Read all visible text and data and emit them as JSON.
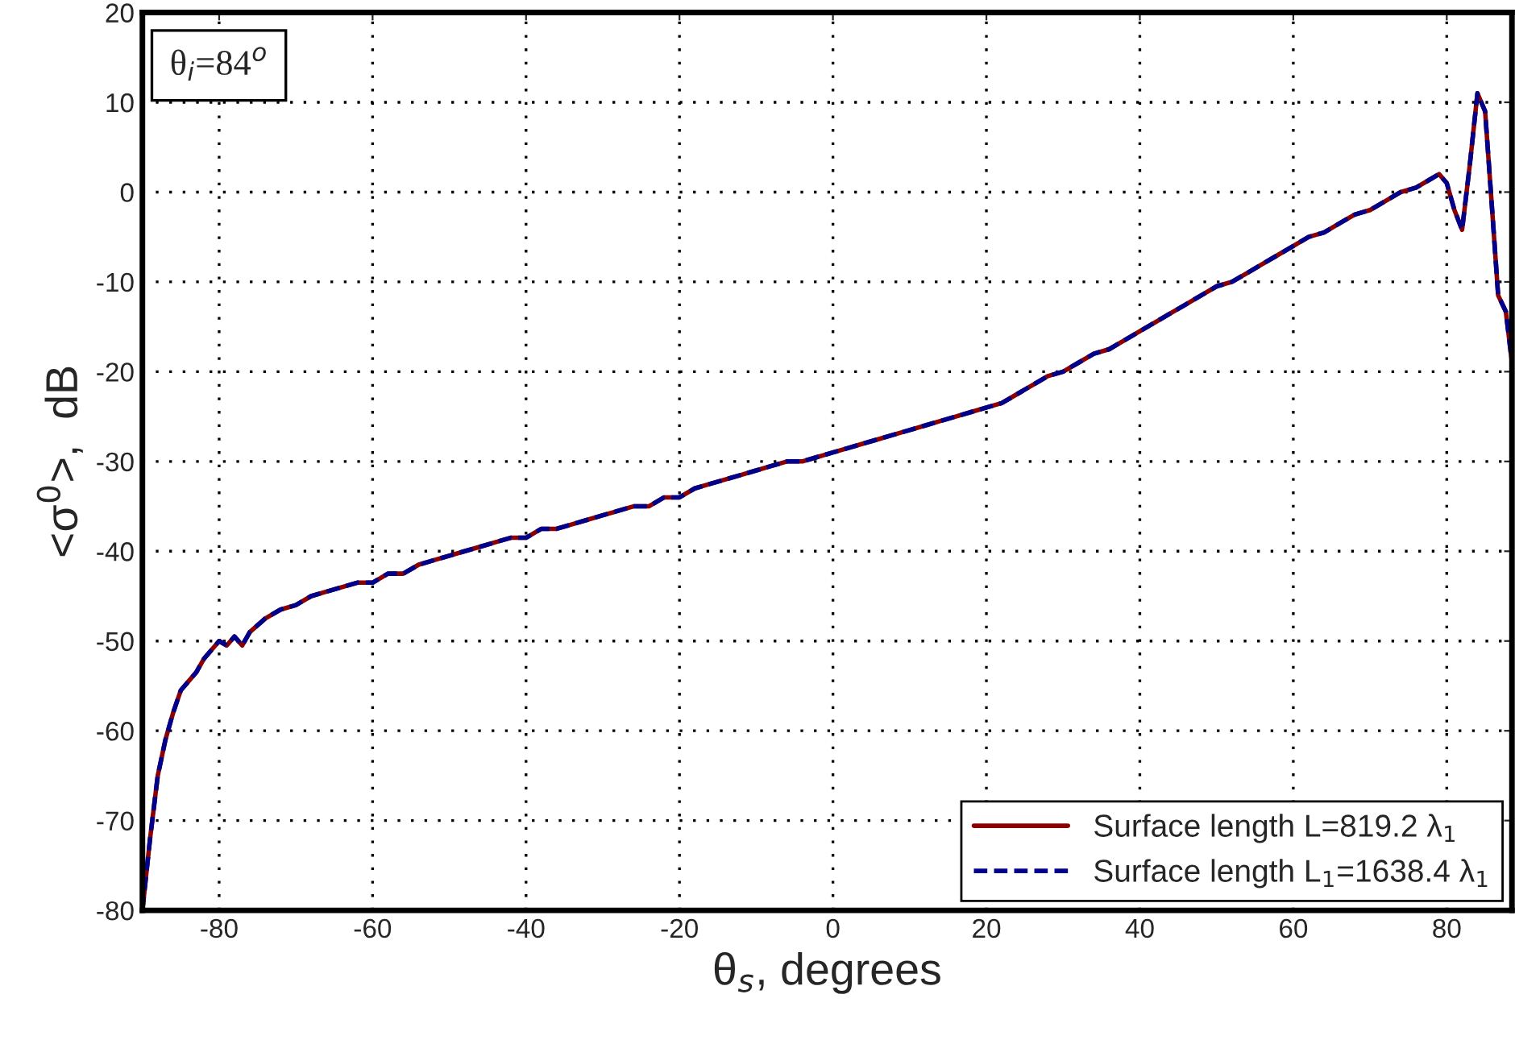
{
  "chart_data": {
    "type": "line",
    "xlabel": "θ$_{s}$, degrees",
    "ylabel": "<σ$^{0}$>,  dB",
    "annotations": [
      "θ$_{i}$=84$^{o}$"
    ],
    "x": [
      -90,
      -89,
      -88,
      -87,
      -86,
      -85,
      -84,
      -83,
      -82,
      -80,
      -79,
      -78,
      -77,
      -76,
      -74,
      -72,
      -70,
      -68,
      -66,
      -64,
      -62,
      -60,
      -58,
      -56,
      -54,
      -52,
      -50,
      -48,
      -46,
      -44,
      -42,
      -40,
      -38,
      -36,
      -34,
      -32,
      -30,
      -28,
      -26,
      -24,
      -22,
      -20,
      -18,
      -16,
      -14,
      -12,
      -10,
      -8,
      -6,
      -4,
      -2,
      0,
      2,
      4,
      6,
      8,
      10,
      12,
      14,
      16,
      18,
      20,
      22,
      24,
      26,
      28,
      30,
      32,
      34,
      36,
      38,
      40,
      42,
      44,
      46,
      48,
      50,
      52,
      54,
      56,
      58,
      60,
      62,
      64,
      66,
      68,
      70,
      72,
      74,
      76,
      78,
      79,
      80,
      81,
      82,
      83,
      84,
      85,
      86,
      86.7,
      87.7,
      88.5
    ],
    "series": [
      {
        "name": "Surface length L=819.2 λ$_{1}$",
        "color": "#8b0000",
        "line_style": "solid",
        "values": [
          -80,
          -72,
          -65,
          -61,
          -58,
          -55.5,
          -54.5,
          -53.5,
          -52,
          -50,
          -50.5,
          -49.5,
          -50.5,
          -49,
          -47.5,
          -46.5,
          -46,
          -45,
          -44.5,
          -44,
          -43.5,
          -43.5,
          -42.5,
          -42.5,
          -41.5,
          -41,
          -40.5,
          -40,
          -39.5,
          -39,
          -38.5,
          -38.5,
          -37.5,
          -37.5,
          -37,
          -36.5,
          -36,
          -35.5,
          -35,
          -35,
          -34,
          -34,
          -33,
          -32.5,
          -32,
          -31.5,
          -31,
          -30.5,
          -30,
          -30,
          -29.5,
          -29,
          -28.5,
          -28,
          -27.5,
          -27,
          -26.5,
          -26,
          -25.5,
          -25,
          -24.5,
          -24,
          -23.5,
          -22.5,
          -21.5,
          -20.5,
          -20,
          -19,
          -18,
          -17.5,
          -16.5,
          -15.5,
          -14.5,
          -13.5,
          -12.5,
          -11.5,
          -10.5,
          -10,
          -9,
          -8,
          -7,
          -6,
          -5,
          -4.5,
          -3.5,
          -2.5,
          -2,
          -1,
          0,
          0.5,
          1.5,
          2,
          1,
          -2,
          -4.2,
          3,
          11,
          9,
          -3,
          -11.5,
          -13.3,
          -19
        ]
      },
      {
        "name": "Surface length L$_{1}$=1638.4 λ$_{1}$",
        "color": "#00008b",
        "line_style": "dashed",
        "values": [
          -80,
          -72,
          -65,
          -61,
          -58,
          -55.5,
          -54.5,
          -53.5,
          -52,
          -50,
          -50.5,
          -49.5,
          -50.5,
          -49,
          -47.5,
          -46.5,
          -46,
          -45,
          -44.5,
          -44,
          -43.5,
          -43.5,
          -42.5,
          -42.5,
          -41.5,
          -41,
          -40.5,
          -40,
          -39.5,
          -39,
          -38.5,
          -38.5,
          -37.5,
          -37.5,
          -37,
          -36.5,
          -36,
          -35.5,
          -35,
          -35,
          -34,
          -34,
          -33,
          -32.5,
          -32,
          -31.5,
          -31,
          -30.5,
          -30,
          -30,
          -29.5,
          -29,
          -28.5,
          -28,
          -27.5,
          -27,
          -26.5,
          -26,
          -25.5,
          -25,
          -24.5,
          -24,
          -23.5,
          -22.5,
          -21.5,
          -20.5,
          -20,
          -19,
          -18,
          -17.5,
          -16.5,
          -15.5,
          -14.5,
          -13.5,
          -12.5,
          -11.5,
          -10.5,
          -10,
          -9,
          -8,
          -7,
          -6,
          -5,
          -4.5,
          -3.5,
          -2.5,
          -2,
          -1,
          0,
          0.5,
          1.5,
          2,
          1,
          -2,
          -4.2,
          3,
          11,
          9,
          -3,
          -11.5,
          -13.3,
          -19
        ]
      }
    ],
    "xlim": [
      -90,
      88.5
    ],
    "xticks": [
      -80,
      -60,
      -40,
      -20,
      0,
      20,
      40,
      60,
      80
    ],
    "ylim": [
      -80,
      20
    ],
    "yticks": [
      -80,
      -70,
      -60,
      -50,
      -40,
      -30,
      -20,
      -10,
      0,
      10,
      20
    ],
    "grid": true,
    "legend": "bottom right"
  }
}
